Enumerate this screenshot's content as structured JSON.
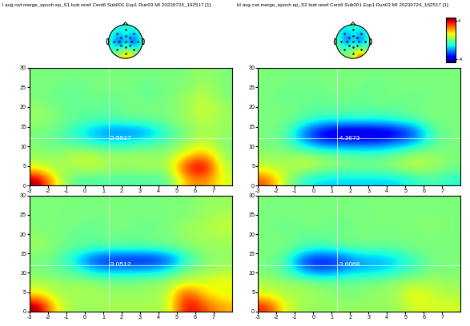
{
  "titles": [
    "l avg cwt merge_epoch ep_S1 butt reref Cent6 Sub001 Exp1 Run03 MI 20230724_162517 [1]",
    "bl avg cwt merge_epoch ep_S2 butt reref Cent6 Sub001 Exp1 Run03 MI 20230724_162517 [1]"
  ],
  "colorbar": {
    "clim": [
      -4.5,
      4.5
    ],
    "ticks": [
      -4,
      4
    ]
  },
  "topomaps": [
    {
      "cells": [
        [
          -1,
          -1,
          -1,
          -1,
          -1
        ],
        [
          -1,
          -1.5,
          -1,
          -1.5,
          -1
        ],
        [
          -1,
          -3.5,
          -1,
          -3.5,
          -1
        ],
        [
          -1,
          -1,
          -0.5,
          -1,
          -1
        ],
        [
          0,
          0.5,
          2,
          1,
          0
        ]
      ]
    },
    {
      "cells": [
        [
          -1,
          -1,
          -1,
          -1,
          -1
        ],
        [
          -1,
          -2,
          -1,
          -2,
          -1
        ],
        [
          -0.5,
          -3,
          -1,
          -3,
          -0.5
        ],
        [
          -0.5,
          -0.5,
          -0.5,
          0,
          -0.5
        ],
        [
          0,
          0,
          0.5,
          3.5,
          0
        ]
      ]
    }
  ],
  "chart_data": [
    {
      "type": "heatmap",
      "xlim": [
        -3,
        8
      ],
      "ylim": [
        0,
        30
      ],
      "xticks": [
        -3,
        -2,
        -1,
        0,
        1,
        2,
        3,
        4,
        5,
        6,
        7
      ],
      "yticks": [
        0,
        5,
        10,
        15,
        20,
        25,
        30
      ],
      "cursor": [
        1.3,
        12
      ],
      "annotation": "-2.5517",
      "cells": [
        [
          4.5,
          1.0,
          -0.5,
          -0.5,
          -0.5,
          -0.5,
          -0.5,
          -0.5,
          2.0,
          2.5,
          1.0
        ],
        [
          1.0,
          0.3,
          0.5,
          0.8,
          0.3,
          0.3,
          0.5,
          0.3,
          3.5,
          4.5,
          0.5
        ],
        [
          0.3,
          0.3,
          0.8,
          0.8,
          0.3,
          0.5,
          0.3,
          0.3,
          1.5,
          2.5,
          0.3
        ],
        [
          0.0,
          -0.3,
          -0.5,
          -0.8,
          -1.0,
          -0.8,
          -0.5,
          -0.3,
          0.3,
          1.0,
          0.0
        ],
        [
          0.0,
          -0.3,
          -1.0,
          -2.0,
          -2.5,
          -2.5,
          -2.0,
          -0.8,
          0.0,
          0.5,
          0.3
        ],
        [
          0.3,
          0.0,
          -0.3,
          -0.5,
          -0.5,
          -0.3,
          -0.3,
          0.0,
          0.3,
          0.8,
          0.3
        ],
        [
          0.3,
          0.0,
          -0.3,
          -0.3,
          -0.3,
          0.0,
          0.0,
          0.0,
          0.3,
          1.0,
          0.3
        ],
        [
          0.0,
          -0.3,
          -0.3,
          0.0,
          -0.3,
          0.0,
          -0.3,
          0.0,
          0.3,
          0.8,
          0.0
        ],
        [
          0.0,
          0.0,
          -0.3,
          0.0,
          0.0,
          0.0,
          -0.3,
          0.0,
          0.0,
          0.5,
          0.0
        ],
        [
          0.0,
          0.0,
          0.0,
          0.0,
          0.0,
          0.0,
          0.0,
          0.0,
          0.0,
          0.3,
          0.0
        ]
      ]
    },
    {
      "type": "heatmap",
      "xlim": [
        -3,
        8
      ],
      "ylim": [
        0,
        30
      ],
      "xticks": [
        -3,
        -2,
        -1,
        0,
        1,
        2,
        3,
        4,
        5,
        6,
        7
      ],
      "yticks": [
        0,
        5,
        10,
        15,
        20,
        25,
        30
      ],
      "cursor": [
        1.3,
        12
      ],
      "annotation": "-4.3673",
      "cells": [
        [
          3.0,
          0.5,
          -1.0,
          -1.5,
          -1.5,
          -1.5,
          -1.5,
          -1.5,
          -1.0,
          -0.5,
          -1.0
        ],
        [
          0.8,
          0.5,
          0.8,
          0.3,
          0.0,
          0.0,
          0.0,
          0.3,
          0.8,
          0.3,
          0.0
        ],
        [
          0.3,
          0.3,
          0.5,
          0.3,
          0.0,
          -0.3,
          -0.3,
          0.0,
          0.5,
          0.5,
          0.0
        ],
        [
          0.0,
          -0.3,
          -1.5,
          -2.5,
          -2.5,
          -2.5,
          -2.5,
          -2.0,
          -1.5,
          -0.5,
          0.0
        ],
        [
          0.0,
          -0.3,
          -2.5,
          -4.0,
          -4.5,
          -4.5,
          -4.5,
          -4.0,
          -3.0,
          -0.5,
          0.0
        ],
        [
          0.0,
          0.0,
          -0.5,
          -1.0,
          -1.0,
          -1.0,
          -1.0,
          -0.8,
          -0.5,
          0.0,
          0.0
        ],
        [
          0.0,
          0.0,
          -0.3,
          -0.3,
          -0.3,
          -0.3,
          -0.3,
          -0.3,
          0.0,
          0.0,
          0.0
        ],
        [
          0.0,
          -0.3,
          0.0,
          -0.3,
          0.0,
          -0.3,
          0.0,
          0.0,
          -0.3,
          0.0,
          0.0
        ],
        [
          0.0,
          0.0,
          -0.3,
          0.0,
          0.0,
          0.0,
          -0.3,
          0.0,
          0.0,
          0.0,
          0.0
        ],
        [
          0.0,
          0.0,
          0.0,
          0.0,
          0.0,
          0.0,
          0.0,
          0.0,
          0.0,
          0.0,
          0.0
        ]
      ]
    },
    {
      "type": "heatmap",
      "xlim": [
        -3,
        8
      ],
      "ylim": [
        0,
        30
      ],
      "xticks": [
        -3,
        -2,
        -1,
        0,
        1,
        2,
        3,
        4,
        5,
        6,
        7
      ],
      "yticks": [
        0,
        5,
        10,
        15,
        20,
        25,
        30
      ],
      "cursor": [
        1.3,
        12
      ],
      "annotation": "-3.0512",
      "cells": [
        [
          4.5,
          1.0,
          0.3,
          0.3,
          0.5,
          0.5,
          0.5,
          0.5,
          4.0,
          3.0,
          2.0
        ],
        [
          1.5,
          0.5,
          0.5,
          0.5,
          0.3,
          0.3,
          0.3,
          0.5,
          3.5,
          1.5,
          1.0
        ],
        [
          0.5,
          0.3,
          0.3,
          0.3,
          0.0,
          0.0,
          0.3,
          0.3,
          1.0,
          1.0,
          1.5
        ],
        [
          0.0,
          -0.3,
          -0.5,
          -1.5,
          -1.5,
          -1.5,
          -1.5,
          -1.0,
          0.0,
          0.3,
          0.5
        ],
        [
          0.0,
          -0.3,
          -1.5,
          -3.0,
          -3.5,
          -3.5,
          -3.5,
          -3.0,
          -1.0,
          0.0,
          0.3
        ],
        [
          0.3,
          0.0,
          -0.3,
          -0.5,
          -0.5,
          -0.5,
          -0.5,
          -0.3,
          0.0,
          0.3,
          0.3
        ],
        [
          0.3,
          0.0,
          -0.3,
          -0.3,
          0.0,
          -0.3,
          0.0,
          0.0,
          0.3,
          0.5,
          0.5
        ],
        [
          0.0,
          0.0,
          0.0,
          -0.3,
          0.0,
          0.0,
          -0.3,
          0.0,
          0.3,
          0.5,
          0.8
        ],
        [
          0.0,
          0.0,
          0.0,
          0.0,
          0.0,
          0.0,
          0.0,
          0.0,
          0.0,
          0.3,
          0.5
        ],
        [
          0.0,
          0.0,
          0.0,
          0.0,
          0.0,
          0.0,
          0.0,
          0.0,
          0.0,
          0.3,
          0.3
        ]
      ]
    },
    {
      "type": "heatmap",
      "xlim": [
        -3,
        8
      ],
      "ylim": [
        0,
        30
      ],
      "xticks": [
        -3,
        -2,
        -1,
        0,
        1,
        2,
        3,
        4,
        5,
        6,
        7
      ],
      "yticks": [
        0,
        5,
        10,
        15,
        20,
        25,
        30
      ],
      "cursor": [
        1.3,
        12
      ],
      "annotation": "-3.6068",
      "cells": [
        [
          3.5,
          1.0,
          0.3,
          0.3,
          0.3,
          0.3,
          0.3,
          0.3,
          1.0,
          1.0,
          1.0
        ],
        [
          1.0,
          0.5,
          0.5,
          0.3,
          0.0,
          0.0,
          0.3,
          0.3,
          1.5,
          0.8,
          0.5
        ],
        [
          0.5,
          0.3,
          0.3,
          0.0,
          0.0,
          0.0,
          0.0,
          0.3,
          0.5,
          0.5,
          0.3
        ],
        [
          0.0,
          -0.5,
          -2.0,
          -2.5,
          -2.0,
          -1.5,
          -1.5,
          -1.0,
          -0.5,
          0.0,
          0.0
        ],
        [
          0.0,
          -0.5,
          -3.0,
          -3.5,
          -3.0,
          -2.0,
          -2.0,
          -1.5,
          -0.8,
          0.0,
          0.0
        ],
        [
          0.0,
          0.0,
          -0.5,
          -0.8,
          -0.5,
          -0.3,
          -0.3,
          -0.3,
          0.0,
          0.0,
          0.0
        ],
        [
          0.0,
          0.0,
          -0.3,
          -0.3,
          0.0,
          0.0,
          0.0,
          0.0,
          0.0,
          0.0,
          0.0
        ],
        [
          0.0,
          -0.3,
          0.0,
          0.0,
          -0.3,
          0.0,
          0.0,
          0.0,
          0.0,
          0.3,
          0.0
        ],
        [
          0.0,
          0.0,
          0.0,
          0.0,
          0.0,
          0.0,
          0.0,
          0.0,
          0.0,
          0.0,
          0.0
        ],
        [
          0.0,
          0.0,
          0.0,
          0.0,
          0.0,
          0.0,
          0.0,
          0.0,
          0.0,
          0.0,
          0.0
        ]
      ]
    }
  ]
}
